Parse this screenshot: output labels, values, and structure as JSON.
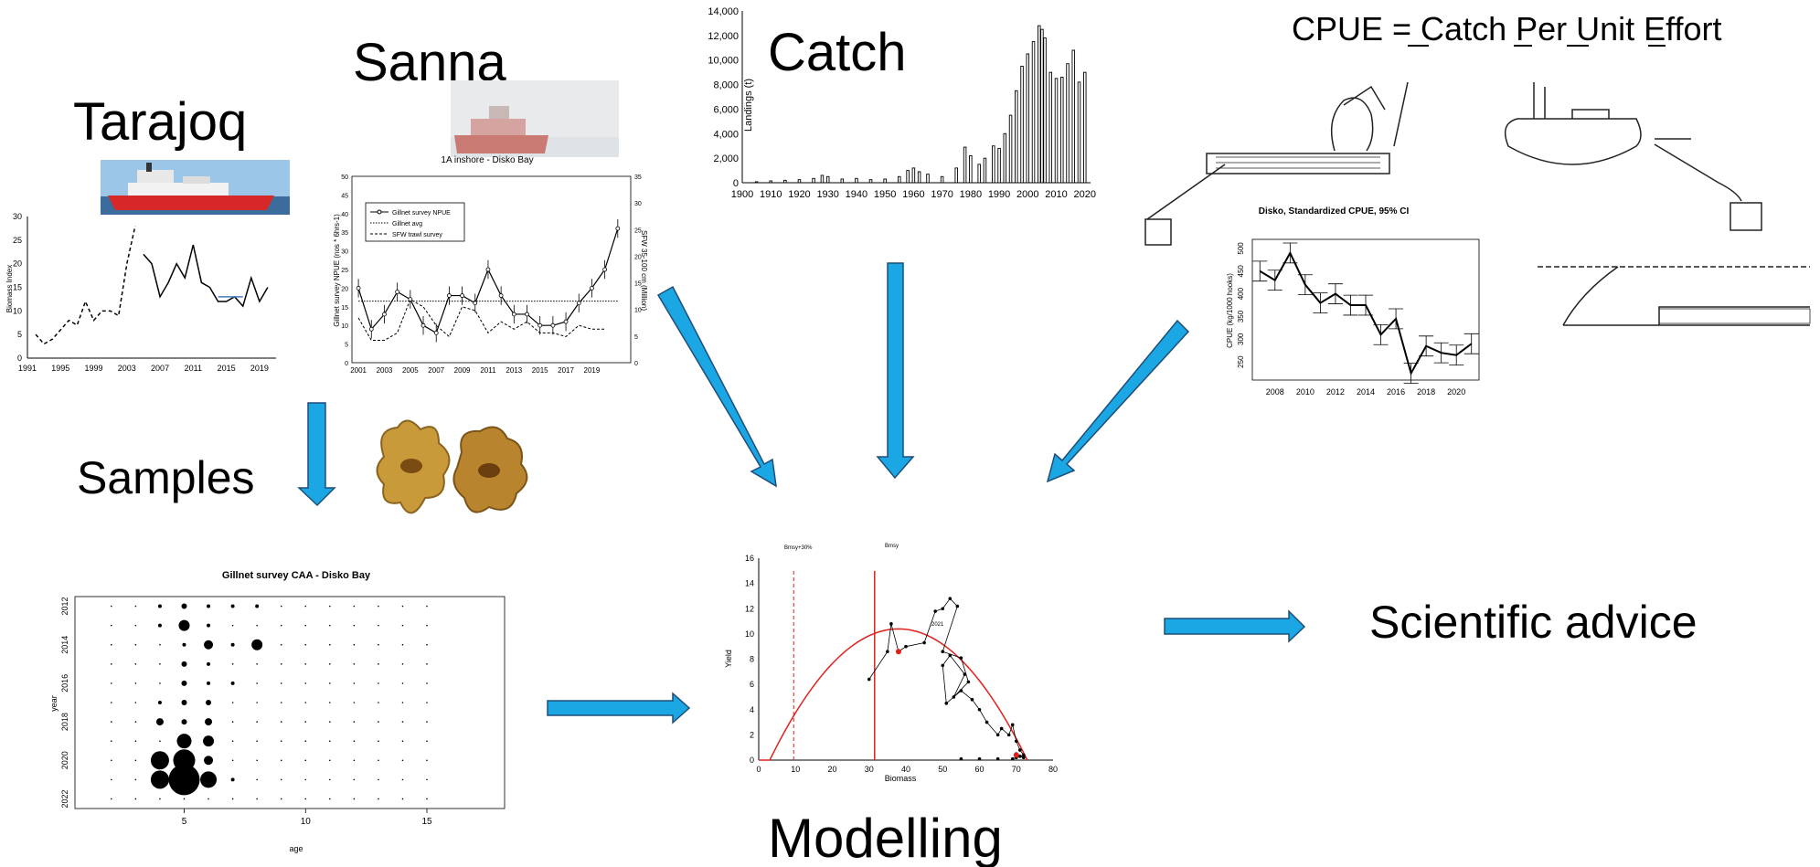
{
  "labels": {
    "tarajoq": "Tarajoq",
    "sanna": "Sanna",
    "catch": "Catch",
    "cpue": "CPUE = Catch Per Unit Effort",
    "samples": "Samples",
    "modelling": "Modelling",
    "advice": "Scientific advice"
  },
  "colors": {
    "arrow": "#1aa7e3",
    "arrow_stroke": "#1f4e79",
    "red": "#e0201b",
    "ship_hull": "#d62828"
  },
  "tarajoq_chart": {
    "ylabel": "Biomass Index",
    "y_ticks": [
      "0",
      "5",
      "10",
      "15",
      "20",
      "25",
      "30"
    ],
    "x_ticks": [
      "1991",
      "1995",
      "1999",
      "2003",
      "2007",
      "2011",
      "2015",
      "2019"
    ],
    "chart_data": {
      "type": "line",
      "ylim": [
        0,
        30
      ],
      "series": [
        {
          "style": "dashed",
          "x": [
            1992,
            1993,
            1994,
            1995,
            1996,
            1997,
            1998,
            1999,
            2000,
            2001,
            2002,
            2003,
            2004
          ],
          "y": [
            5,
            3,
            4,
            6,
            8,
            7,
            12,
            8,
            10,
            10,
            9,
            20,
            28
          ]
        },
        {
          "style": "solid",
          "x": [
            2005,
            2006,
            2007,
            2008,
            2009,
            2010,
            2011,
            2012,
            2013,
            2014,
            2015,
            2016,
            2017,
            2018,
            2019,
            2020
          ],
          "y": [
            22,
            20,
            13,
            16,
            20,
            17,
            24,
            16,
            15,
            12,
            12,
            13,
            11,
            17,
            12,
            15
          ]
        }
      ]
    }
  },
  "sanna_chart": {
    "title": "1A inshore - Disko Bay",
    "ylabel": "Gillnet survey NPUE (nos * 6hrs-1)",
    "ylabel_right": "SFW 35-100 cm (Million)",
    "legend": [
      "Gillnet survey NPUE",
      "Gillnet avg",
      "SFW trawl survey"
    ],
    "y_ticks": [
      "0",
      "5",
      "10",
      "15",
      "20",
      "25",
      "30",
      "35",
      "40",
      "45",
      "50"
    ],
    "y2_ticks": [
      "0",
      "5",
      "10",
      "15",
      "20",
      "25",
      "30",
      "35"
    ],
    "x_ticks": [
      "2001",
      "2003",
      "2005",
      "2007",
      "2009",
      "2011",
      "2013",
      "2015",
      "2017",
      "2019"
    ],
    "chart_data": {
      "type": "line",
      "ylim": [
        0,
        50
      ],
      "series": [
        {
          "name": "Gillnet survey NPUE",
          "x": [
            2001,
            2002,
            2003,
            2004,
            2005,
            2006,
            2007,
            2008,
            2009,
            2010,
            2011,
            2012,
            2013,
            2014,
            2015,
            2016,
            2017,
            2018,
            2019,
            2020,
            2021
          ],
          "y": [
            20,
            9,
            13,
            19,
            17,
            10,
            8,
            18,
            18,
            16,
            25,
            18,
            13,
            13,
            10,
            10,
            11,
            16,
            20,
            25,
            36
          ]
        },
        {
          "name": "Gillnet avg",
          "x": [
            2001,
            2021
          ],
          "y": [
            16.5,
            16.5
          ]
        },
        {
          "name": "SFW trawl survey",
          "x": [
            2001,
            2002,
            2003,
            2004,
            2005,
            2006,
            2007,
            2008,
            2009,
            2010,
            2011,
            2012,
            2013,
            2014,
            2015,
            2016,
            2017,
            2018,
            2019,
            2020
          ],
          "y": [
            12,
            6,
            6,
            8,
            17,
            15,
            10,
            7,
            15,
            14,
            8,
            11,
            9,
            11,
            8,
            8,
            7,
            10,
            9,
            9
          ]
        }
      ]
    }
  },
  "catch_chart": {
    "ylabel": "Landings (t)",
    "y_ticks": [
      "0",
      "2,000",
      "4,000",
      "6,000",
      "8,000",
      "10,000",
      "12,000",
      "14,000"
    ],
    "x_ticks": [
      "1900",
      "1910",
      "1920",
      "1930",
      "1940",
      "1950",
      "1960",
      "1970",
      "1980",
      "1990",
      "2000",
      "2010",
      "2020"
    ],
    "chart_data": {
      "type": "bar",
      "ylim": [
        0,
        14000
      ],
      "x": [
        1905,
        1910,
        1915,
        1920,
        1925,
        1928,
        1930,
        1935,
        1940,
        1945,
        1950,
        1955,
        1958,
        1960,
        1962,
        1965,
        1970,
        1975,
        1978,
        1980,
        1983,
        1985,
        1988,
        1990,
        1992,
        1994,
        1996,
        1998,
        2000,
        2002,
        2004,
        2005,
        2006,
        2008,
        2010,
        2012,
        2014,
        2016,
        2018,
        2020
      ],
      "values": [
        80,
        150,
        200,
        250,
        350,
        600,
        500,
        300,
        350,
        250,
        300,
        500,
        1000,
        1200,
        900,
        700,
        500,
        1200,
        2900,
        2200,
        1500,
        2000,
        3000,
        2800,
        4000,
        5500,
        7500,
        9500,
        10500,
        11500,
        12800,
        12500,
        11800,
        9000,
        8500,
        8600,
        9700,
        10800,
        8200,
        9000
      ]
    }
  },
  "cpue_chart": {
    "title": "Disko, Standardized CPUE, 95% CI",
    "ylabel": "CPUE (kg/1000 hooks)",
    "y_ticks": [
      "250",
      "300",
      "350",
      "400",
      "450",
      "500"
    ],
    "x_ticks": [
      "2008",
      "2010",
      "2012",
      "2014",
      "2016",
      "2018",
      "2020"
    ],
    "chart_data": {
      "type": "line",
      "ylim": [
        210,
        520
      ],
      "x": [
        2007,
        2008,
        2009,
        2010,
        2011,
        2012,
        2013,
        2014,
        2015,
        2016,
        2017,
        2018,
        2019,
        2020,
        2021
      ],
      "y": [
        450,
        430,
        490,
        420,
        380,
        400,
        375,
        375,
        310,
        345,
        225,
        285,
        270,
        265,
        290
      ]
    }
  },
  "caa_chart": {
    "title": "Gillnet survey CAA - Disko Bay",
    "xlabel": "age",
    "ylabel": "year",
    "x_ticks": [
      "5",
      "10",
      "15"
    ],
    "y_ticks": [
      "2012",
      "2014",
      "2016",
      "2018",
      "2020",
      "2022"
    ],
    "chart_data": {
      "type": "scatter",
      "x_range": [
        1,
        17
      ],
      "y_range": [
        2011.5,
        2022.5
      ],
      "points": [
        {
          "age": 4,
          "year": 2012,
          "size": 2
        },
        {
          "age": 5,
          "year": 2012,
          "size": 3
        },
        {
          "age": 6,
          "year": 2012,
          "size": 2
        },
        {
          "age": 7,
          "year": 2012,
          "size": 2
        },
        {
          "age": 8,
          "year": 2012,
          "size": 2
        },
        {
          "age": 4,
          "year": 2013,
          "size": 2
        },
        {
          "age": 5,
          "year": 2013,
          "size": 6
        },
        {
          "age": 6,
          "year": 2013,
          "size": 2
        },
        {
          "age": 5,
          "year": 2014,
          "size": 2
        },
        {
          "age": 6,
          "year": 2014,
          "size": 5
        },
        {
          "age": 7,
          "year": 2014,
          "size": 2
        },
        {
          "age": 8,
          "year": 2014,
          "size": 6
        },
        {
          "age": 5,
          "year": 2015,
          "size": 3
        },
        {
          "age": 6,
          "year": 2015,
          "size": 2
        },
        {
          "age": 5,
          "year": 2016,
          "size": 3
        },
        {
          "age": 6,
          "year": 2016,
          "size": 2
        },
        {
          "age": 7,
          "year": 2016,
          "size": 2
        },
        {
          "age": 4,
          "year": 2017,
          "size": 2
        },
        {
          "age": 5,
          "year": 2017,
          "size": 3
        },
        {
          "age": 6,
          "year": 2017,
          "size": 3
        },
        {
          "age": 4,
          "year": 2018,
          "size": 4
        },
        {
          "age": 5,
          "year": 2018,
          "size": 3
        },
        {
          "age": 6,
          "year": 2018,
          "size": 4
        },
        {
          "age": 5,
          "year": 2019,
          "size": 8
        },
        {
          "age": 6,
          "year": 2019,
          "size": 6
        },
        {
          "age": 4,
          "year": 2020,
          "size": 10
        },
        {
          "age": 5,
          "year": 2020,
          "size": 12
        },
        {
          "age": 6,
          "year": 2020,
          "size": 5
        },
        {
          "age": 4,
          "year": 2021,
          "size": 10
        },
        {
          "age": 5,
          "year": 2021,
          "size": 17
        },
        {
          "age": 6,
          "year": 2021,
          "size": 9
        },
        {
          "age": 7,
          "year": 2021,
          "size": 2
        }
      ]
    }
  },
  "model_chart": {
    "xlabel": "Biomass",
    "ylabel": "Yield",
    "annot_bmsy30": "Bmsy+30%",
    "annot_bmsy": "Bmsy",
    "annot_year": "2021",
    "x_ticks": [
      "0",
      "10",
      "20",
      "30",
      "40",
      "50",
      "60",
      "70",
      "80"
    ],
    "y_ticks": [
      "0",
      "2",
      "4",
      "6",
      "8",
      "10",
      "12",
      "14",
      "16"
    ],
    "chart_data": {
      "type": "scatter",
      "xlim": [
        0,
        80
      ],
      "ylim": [
        0,
        16
      ],
      "curve_peak": [
        38,
        10.4
      ],
      "curve_zero": 73,
      "vlines": [
        9.5,
        31.5
      ],
      "points_x": [
        30,
        35,
        36,
        38,
        40,
        45,
        48,
        50,
        52,
        54,
        50,
        55,
        57,
        53,
        56,
        52,
        50,
        51,
        55,
        58,
        60,
        62,
        65,
        66,
        68,
        69,
        70,
        71,
        72,
        70,
        69,
        71,
        72,
        70,
        55,
        60,
        65
      ],
      "points_y": [
        6.4,
        8.6,
        10.8,
        8.6,
        9.0,
        9.3,
        11.8,
        12.0,
        12.8,
        12.2,
        8.6,
        8.1,
        6.2,
        5.0,
        6.8,
        8.3,
        7.5,
        4.5,
        5.5,
        4.8,
        4.0,
        3.0,
        2.0,
        2.5,
        2.0,
        2.8,
        1.5,
        0.8,
        0.4,
        0.2,
        0.1,
        0.3,
        0.2,
        0.5,
        0.1,
        0.1,
        0.1
      ]
    }
  }
}
